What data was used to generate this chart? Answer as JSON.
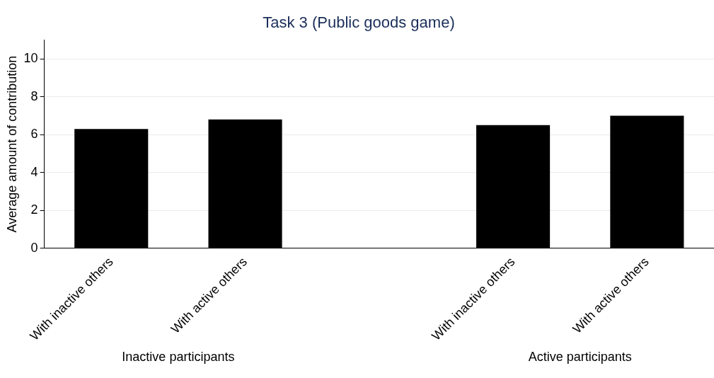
{
  "chart_data": {
    "type": "bar",
    "title": "Task 3 (Public goods game)",
    "ylabel": "Average amount of contribution",
    "categories": [
      "With inactive others",
      "With active others",
      null,
      "With inactive others",
      "With active others"
    ],
    "values": [
      6.3,
      6.8,
      null,
      6.5,
      7.0
    ],
    "color": "#000000",
    "ylim": [
      0,
      11
    ],
    "yticks": [
      0,
      2,
      4,
      6,
      8,
      10
    ],
    "grid": "y",
    "annotations": [
      "Inactive participants",
      "Active participants"
    ]
  }
}
